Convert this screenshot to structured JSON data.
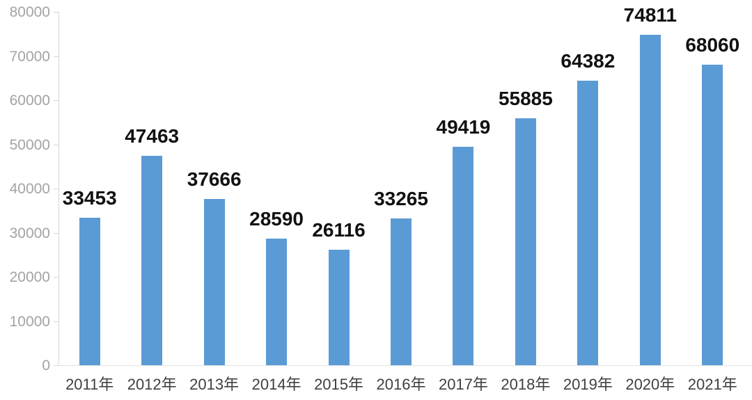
{
  "chart_data": {
    "type": "bar",
    "categories": [
      "2011年",
      "2012年",
      "2013年",
      "2014年",
      "2015年",
      "2016年",
      "2017年",
      "2018年",
      "2019年",
      "2020年",
      "2021年"
    ],
    "values": [
      33453,
      47463,
      37666,
      28590,
      26116,
      33265,
      49419,
      55885,
      64382,
      74811,
      68060
    ],
    "title": "",
    "xlabel": "",
    "ylabel": "",
    "ylim": [
      0,
      80000
    ],
    "ytick_step": 10000,
    "ytick_labels": [
      "0",
      "10000",
      "20000",
      "30000",
      "40000",
      "50000",
      "60000",
      "70000",
      "80000"
    ],
    "data_labels_visible": true,
    "grid": false,
    "legend_position": "none",
    "colors": {
      "bar": "#5B9BD5",
      "data_label": "#111111",
      "ytick_text": "#a3a3a3",
      "xtick_text": "#404040",
      "axis_line": "#d6d6d6",
      "baseline": "#e2e2e2"
    }
  }
}
